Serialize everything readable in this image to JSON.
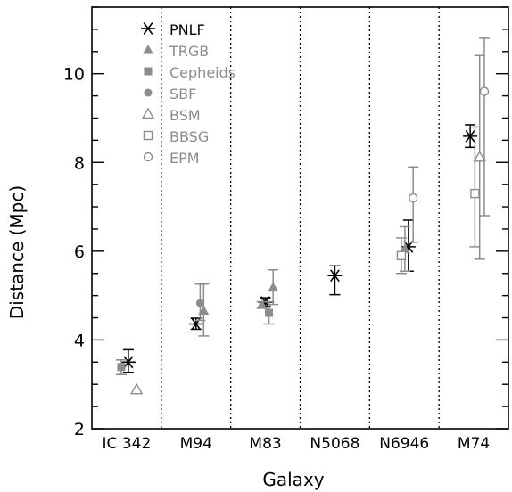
{
  "chart_data": {
    "type": "scatter",
    "xlabel": "Galaxy",
    "ylabel": "Distance (Mpc)",
    "ylim": [
      2,
      11.5
    ],
    "yticks": [
      2,
      4,
      6,
      8,
      10
    ],
    "categories": [
      "IC  342",
      "M94",
      "M83",
      "N5068",
      "N6946",
      "M74"
    ],
    "grid": false,
    "legend": "top-left",
    "colors": {
      "PNLF": "#000000",
      "other": "#8c8c8c"
    },
    "series": [
      {
        "name": "PNLF",
        "marker": "asterisk",
        "points": [
          {
            "category": "IC  342",
            "offset": 0.15,
            "y": 3.5,
            "err": [
              3.27,
              3.78
            ]
          },
          {
            "category": "M94",
            "offset": 0.0,
            "y": 4.36,
            "err": [
              4.24,
              4.49
            ]
          },
          {
            "category": "M83",
            "offset": 0.0,
            "y": 4.85,
            "err": [
              4.76,
              4.95
            ]
          },
          {
            "category": "N5068",
            "offset": 0.0,
            "y": 5.45,
            "err": [
              5.02,
              5.67
            ]
          },
          {
            "category": "N6946",
            "offset": 0.35,
            "y": 6.1,
            "err": [
              5.55,
              6.7
            ]
          },
          {
            "category": "M74",
            "offset": -0.3,
            "y": 8.59,
            "err": [
              8.34,
              8.85
            ]
          }
        ]
      },
      {
        "name": "TRGB",
        "marker": "filled-triangle",
        "points": [
          {
            "category": "M94",
            "offset": 0.65,
            "y": 4.66,
            "err": [
              4.09,
              5.26
            ]
          },
          {
            "category": "M83",
            "offset": -0.3,
            "y": 4.79,
            "err": [
              4.72,
              4.86
            ]
          },
          {
            "category": "M83",
            "offset": 0.65,
            "y": 5.18,
            "err": [
              4.8,
              5.58
            ]
          },
          {
            "category": "N6946",
            "offset": 0.05,
            "y": 6.05,
            "err": [
              5.55,
              6.55
            ]
          }
        ]
      },
      {
        "name": "Cepheids",
        "marker": "filled-square",
        "points": [
          {
            "category": "IC  342",
            "offset": -0.45,
            "y": 3.39,
            "err": [
              3.22,
              3.55
            ]
          },
          {
            "category": "M83",
            "offset": 0.3,
            "y": 4.61,
            "err": [
              4.36,
              4.86
            ]
          }
        ]
      },
      {
        "name": "SBF",
        "marker": "filled-circle",
        "points": [
          {
            "category": "M94",
            "offset": 0.35,
            "y": 4.83,
            "err": [
              4.44,
              5.26
            ]
          }
        ]
      },
      {
        "name": "BSM",
        "marker": "open-triangle",
        "points": [
          {
            "category": "IC  342",
            "offset": 0.85,
            "y": 2.88,
            "err": null
          },
          {
            "category": "M74",
            "offset": 0.5,
            "y": 8.12,
            "err": [
              5.82,
              10.41
            ]
          }
        ]
      },
      {
        "name": "BBSG",
        "marker": "open-square",
        "points": [
          {
            "category": "N6946",
            "offset": -0.25,
            "y": 5.9,
            "err": [
              5.5,
              6.3
            ]
          },
          {
            "category": "M74",
            "offset": 0.1,
            "y": 7.3,
            "err": [
              6.1,
              8.8
            ]
          }
        ]
      },
      {
        "name": "EPM",
        "marker": "open-circle",
        "points": [
          {
            "category": "N6946",
            "offset": 0.75,
            "y": 7.2,
            "err": [
              6.2,
              7.9
            ]
          },
          {
            "category": "M74",
            "offset": 0.9,
            "y": 9.6,
            "err": [
              6.8,
              10.8
            ]
          }
        ]
      }
    ]
  }
}
